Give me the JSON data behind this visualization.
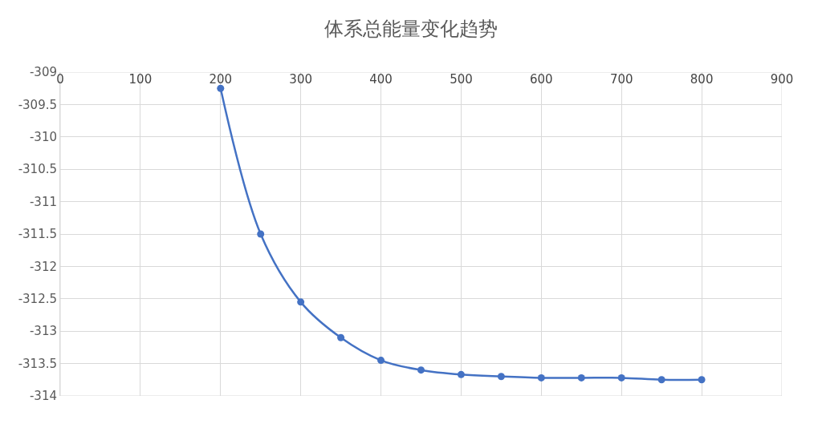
{
  "chart_data": {
    "type": "line",
    "title": "体系总能量变化趋势",
    "x": [
      200,
      250,
      300,
      350,
      400,
      450,
      500,
      550,
      600,
      650,
      700,
      750,
      800
    ],
    "series": [
      {
        "color": "#4472c4",
        "values": [
          -309.25,
          -311.5,
          -312.55,
          -313.1,
          -313.45,
          -313.6,
          -313.67,
          -313.7,
          -313.72,
          -313.72,
          -313.72,
          -313.75,
          -313.75
        ]
      }
    ],
    "xlim": [
      0,
      900
    ],
    "xticks": [
      0,
      100,
      200,
      300,
      400,
      500,
      600,
      700,
      800,
      900
    ],
    "ylim": [
      -314,
      -309
    ],
    "yticks": [
      -309,
      -309.5,
      -310,
      -310.5,
      -311,
      -311.5,
      -312,
      -312.5,
      -313,
      -313.5,
      -314
    ],
    "grid": true,
    "marker": "circle",
    "line_style": "solid"
  }
}
